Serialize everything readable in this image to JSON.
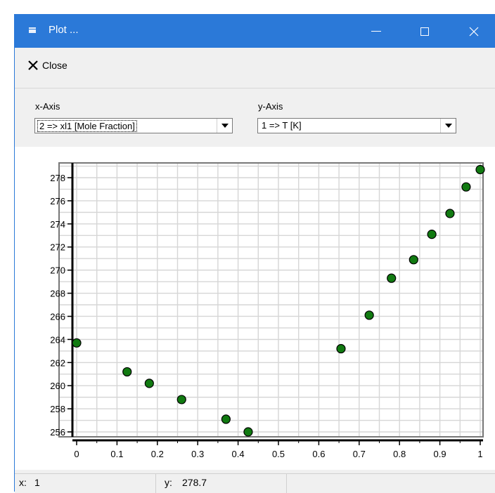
{
  "window": {
    "title": "Plot ..."
  },
  "toolbar": {
    "close_label": "Close"
  },
  "x_axis_selector": {
    "label": "x-Axis",
    "value": "2 => xl1 [Mole Fraction]"
  },
  "y_axis_selector": {
    "label": "y-Axis",
    "value": "1 => T [K]"
  },
  "status": {
    "x_label": "x:",
    "x_value": "1",
    "y_label": "y:",
    "y_value": "278.7"
  },
  "chart_data": {
    "type": "scatter",
    "title": "",
    "xlabel": "",
    "ylabel": "",
    "xlim": [
      0,
      1
    ],
    "ylim": [
      255.5,
      279
    ],
    "grid": true,
    "x_ticks": [
      0,
      0.1,
      0.2,
      0.3,
      0.4,
      0.5,
      0.6,
      0.7,
      0.8,
      0.9,
      1
    ],
    "x_tick_labels": [
      "0",
      "0.1",
      "0.2",
      "0.3",
      "0.4",
      "0.5",
      "0.6",
      "0.7",
      "0.8",
      "0.9",
      "1"
    ],
    "y_ticks": [
      256,
      258,
      260,
      262,
      264,
      266,
      268,
      270,
      272,
      274,
      276,
      278
    ],
    "y_tick_labels": [
      "256",
      "258",
      "260",
      "262",
      "264",
      "266",
      "268",
      "270",
      "272",
      "274",
      "276",
      "278"
    ],
    "marker_color": "#117a11",
    "series": [
      {
        "x": [
          0,
          0.125,
          0.18,
          0.26,
          0.37,
          0.425,
          0.655,
          0.725,
          0.78,
          0.835,
          0.88,
          0.925,
          0.965,
          1
        ],
        "y": [
          263.7,
          261.2,
          260.2,
          258.8,
          257.1,
          256.0,
          263.2,
          266.1,
          269.3,
          270.9,
          273.1,
          274.9,
          277.2,
          278.7
        ]
      }
    ]
  }
}
